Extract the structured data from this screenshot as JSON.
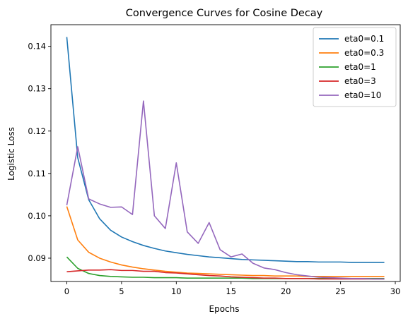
{
  "chart_data": {
    "type": "line",
    "title": "Convergence Curves for Cosine Decay",
    "xlabel": "Epochs",
    "ylabel": "Logistic Loss",
    "xlim": [
      -1.45,
      30.45
    ],
    "ylim": [
      0.0845,
      0.1451
    ],
    "xticks": [
      0,
      5,
      10,
      15,
      20,
      25,
      30
    ],
    "yticks": [
      0.09,
      0.1,
      0.11,
      0.12,
      0.13,
      0.14
    ],
    "xtick_labels": [
      "0",
      "5",
      "10",
      "15",
      "20",
      "25",
      "30"
    ],
    "ytick_labels": [
      "0.09",
      "0.10",
      "0.11",
      "0.12",
      "0.13",
      "0.14"
    ],
    "grid": false,
    "legend_position": "top-right",
    "x": [
      0,
      1,
      2,
      3,
      4,
      5,
      6,
      7,
      8,
      9,
      10,
      11,
      12,
      13,
      14,
      15,
      16,
      17,
      18,
      19,
      20,
      21,
      22,
      23,
      24,
      25,
      26,
      27,
      28,
      29
    ],
    "series": [
      {
        "name": "eta0=0.1",
        "color": "#1f77b4",
        "values": [
          0.1422,
          0.1137,
          0.1038,
          0.0993,
          0.0966,
          0.095,
          0.0939,
          0.093,
          0.0923,
          0.0917,
          0.0913,
          0.0909,
          0.0906,
          0.0903,
          0.0901,
          0.0899,
          0.0897,
          0.0896,
          0.0895,
          0.0894,
          0.0893,
          0.0892,
          0.0892,
          0.0891,
          0.0891,
          0.0891,
          0.089,
          0.089,
          0.089,
          0.089
        ]
      },
      {
        "name": "eta0=0.3",
        "color": "#ff7f0e",
        "values": [
          0.1022,
          0.0943,
          0.0914,
          0.09,
          0.0891,
          0.0884,
          0.0879,
          0.0875,
          0.0872,
          0.0869,
          0.0867,
          0.0865,
          0.0864,
          0.0863,
          0.0862,
          0.0861,
          0.086,
          0.0859,
          0.0859,
          0.0858,
          0.0858,
          0.0858,
          0.0857,
          0.0857,
          0.0857,
          0.0857,
          0.0857,
          0.0857,
          0.0857,
          0.0857
        ]
      },
      {
        "name": "eta0=1",
        "color": "#2ca02c",
        "values": [
          0.0903,
          0.0876,
          0.0864,
          0.0859,
          0.0857,
          0.0856,
          0.0855,
          0.0855,
          0.0854,
          0.0854,
          0.0854,
          0.0853,
          0.0853,
          0.0853,
          0.0853,
          0.0853,
          0.0853,
          0.0852,
          0.0852,
          0.0852,
          0.0852,
          0.0852,
          0.0852,
          0.0852,
          0.0852,
          0.0852,
          0.0852,
          0.0852,
          0.0852,
          0.0852
        ]
      },
      {
        "name": "eta0=3",
        "color": "#d62728",
        "values": [
          0.0868,
          0.087,
          0.0872,
          0.0872,
          0.0873,
          0.0871,
          0.0871,
          0.0869,
          0.0869,
          0.0866,
          0.0865,
          0.0863,
          0.0861,
          0.0859,
          0.0858,
          0.0856,
          0.0855,
          0.0854,
          0.0853,
          0.0853,
          0.0852,
          0.0852,
          0.0852,
          0.0851,
          0.0851,
          0.0851,
          0.0851,
          0.0851,
          0.0851,
          0.0851
        ]
      },
      {
        "name": "eta0=10",
        "color": "#9467bd",
        "values": [
          0.1025,
          0.1163,
          0.104,
          0.1028,
          0.102,
          0.1021,
          0.1003,
          0.1271,
          0.1,
          0.097,
          0.1125,
          0.0962,
          0.0935,
          0.0984,
          0.092,
          0.0903,
          0.091,
          0.0888,
          0.0877,
          0.0873,
          0.0866,
          0.0861,
          0.0858,
          0.0855,
          0.0854,
          0.0853,
          0.0852,
          0.0852,
          0.0851,
          0.0851
        ]
      }
    ]
  }
}
